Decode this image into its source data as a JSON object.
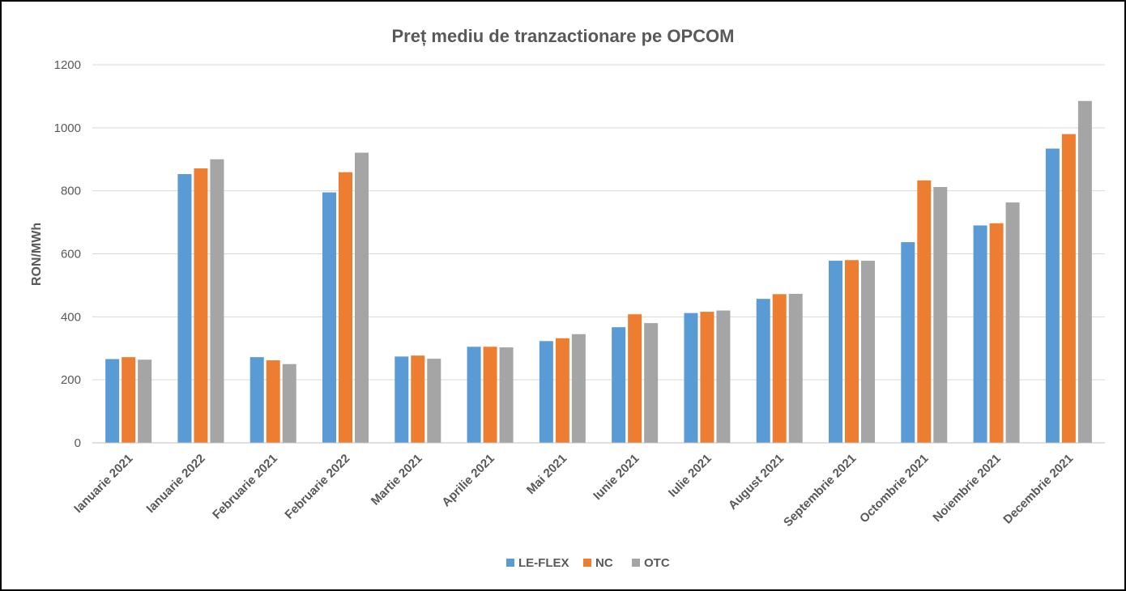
{
  "chart_data": {
    "type": "bar",
    "title": "Preț mediu de tranzactionare pe OPCOM",
    "xlabel": "",
    "ylabel": "RON/MWh",
    "ylim": [
      0,
      1200
    ],
    "yticks": [
      "0",
      "200",
      "400",
      "600",
      "800",
      "1000",
      "1200"
    ],
    "grid": true,
    "legend_position": "bottom",
    "categories": [
      "Ianuarie 2021",
      "Ianuarie 2022",
      "Februarie 2021",
      "Februarie 2022",
      "Martie 2021",
      "Aprilie 2021",
      "Mai 2021",
      "Iunie 2021",
      "Iulie 2021",
      "August 2021",
      "Septembrie 2021",
      "Octombrie 2021",
      "Noiembrie 2021",
      "Decembrie 2021"
    ],
    "series": [
      {
        "name": "LE-FLEX",
        "color": "#5b9bd5",
        "values": [
          266,
          853,
          272,
          795,
          274,
          305,
          323,
          367,
          412,
          457,
          578,
          637,
          690,
          934
        ]
      },
      {
        "name": "NC",
        "color": "#ed7d31",
        "values": [
          272,
          871,
          262,
          859,
          277,
          305,
          332,
          408,
          416,
          472,
          580,
          833,
          697,
          980
        ]
      },
      {
        "name": "OTC",
        "color": "#a5a5a5",
        "values": [
          264,
          900,
          250,
          921,
          267,
          303,
          345,
          380,
          420,
          473,
          578,
          812,
          763,
          1085
        ]
      }
    ]
  }
}
